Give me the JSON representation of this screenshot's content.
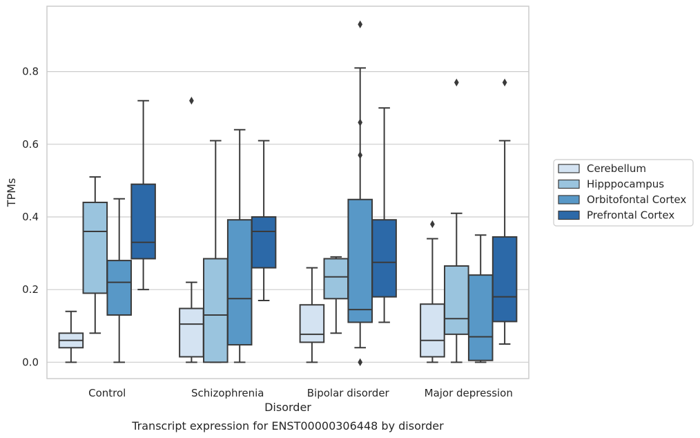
{
  "chart_data": {
    "type": "boxplot",
    "title": "Transcript expression for ENST00000306448 by disorder",
    "xlabel": "Disorder",
    "ylabel": "TPMs",
    "ylim": [
      -0.045,
      0.98
    ],
    "yticks": [
      0.0,
      0.2,
      0.4,
      0.6,
      0.8
    ],
    "ytick_labels": [
      "0.0",
      "0.2",
      "0.4",
      "0.6",
      "0.8"
    ],
    "grid": "horizontal",
    "legend_position": "right",
    "categories": [
      "Control",
      "Schizophrenia",
      "Bipolar disorder",
      "Major depression"
    ],
    "series": [
      {
        "name": "Cerebellum",
        "color": "#d4e3f2",
        "boxes": [
          {
            "whislo": 0.0,
            "q1": 0.04,
            "med": 0.06,
            "q3": 0.08,
            "whishi": 0.14,
            "fliers": []
          },
          {
            "whislo": 0.0,
            "q1": 0.015,
            "med": 0.105,
            "q3": 0.148,
            "whishi": 0.22,
            "fliers": [
              0.72
            ]
          },
          {
            "whislo": 0.0,
            "q1": 0.055,
            "med": 0.077,
            "q3": 0.158,
            "whishi": 0.26,
            "fliers": []
          },
          {
            "whislo": 0.0,
            "q1": 0.015,
            "med": 0.06,
            "q3": 0.16,
            "whishi": 0.34,
            "fliers": [
              0.38
            ]
          }
        ]
      },
      {
        "name": "Hipppocampus",
        "color": "#9ac4de",
        "boxes": [
          {
            "whislo": 0.08,
            "q1": 0.19,
            "med": 0.36,
            "q3": 0.44,
            "whishi": 0.51,
            "fliers": []
          },
          {
            "whislo": 0.0,
            "q1": 0.0,
            "med": 0.13,
            "q3": 0.285,
            "whishi": 0.61,
            "fliers": []
          },
          {
            "whislo": 0.08,
            "q1": 0.175,
            "med": 0.235,
            "q3": 0.285,
            "whishi": 0.29,
            "fliers": []
          },
          {
            "whislo": 0.0,
            "q1": 0.077,
            "med": 0.12,
            "q3": 0.265,
            "whishi": 0.41,
            "fliers": [
              0.77
            ]
          }
        ]
      },
      {
        "name": "Orbitofontal Cortex",
        "color": "#5898c7",
        "boxes": [
          {
            "whislo": 0.0,
            "q1": 0.13,
            "med": 0.22,
            "q3": 0.28,
            "whishi": 0.45,
            "fliers": []
          },
          {
            "whislo": 0.0,
            "q1": 0.048,
            "med": 0.175,
            "q3": 0.392,
            "whishi": 0.64,
            "fliers": []
          },
          {
            "whislo": 0.04,
            "q1": 0.11,
            "med": 0.145,
            "q3": 0.448,
            "whishi": 0.81,
            "fliers": [
              0.93,
              0.66,
              0.57,
              0.0
            ]
          },
          {
            "whislo": 0.0,
            "q1": 0.005,
            "med": 0.07,
            "q3": 0.24,
            "whishi": 0.35,
            "fliers": []
          }
        ]
      },
      {
        "name": "Prefrontal Cortex",
        "color": "#2c69a8",
        "boxes": [
          {
            "whislo": 0.2,
            "q1": 0.285,
            "med": 0.33,
            "q3": 0.49,
            "whishi": 0.72,
            "fliers": []
          },
          {
            "whislo": 0.17,
            "q1": 0.26,
            "med": 0.36,
            "q3": 0.4,
            "whishi": 0.61,
            "fliers": []
          },
          {
            "whislo": 0.11,
            "q1": 0.18,
            "med": 0.275,
            "q3": 0.392,
            "whishi": 0.7,
            "fliers": []
          },
          {
            "whislo": 0.05,
            "q1": 0.112,
            "med": 0.18,
            "q3": 0.345,
            "whishi": 0.61,
            "fliers": [
              0.77
            ]
          }
        ]
      }
    ]
  }
}
